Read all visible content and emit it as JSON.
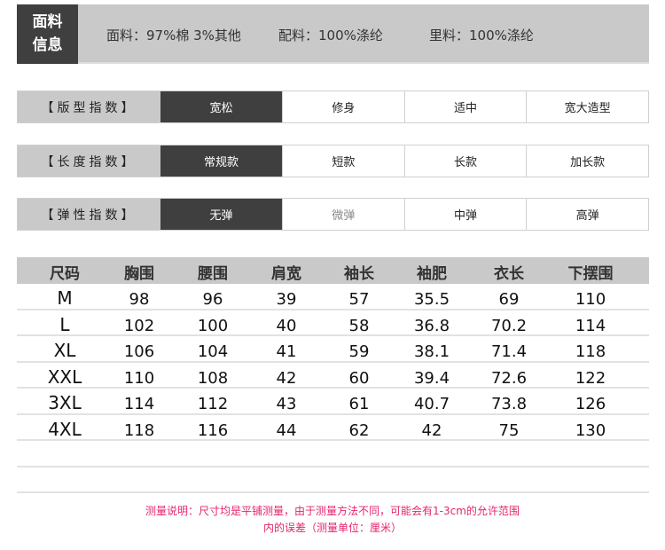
{
  "fabric": {
    "tag_line1": "面料",
    "tag_line2": "信息",
    "items": [
      "面料：97%棉  3%其他",
      "配料：100%涤纶",
      "里料：100%涤纶"
    ]
  },
  "indices": [
    {
      "label": "【版型指数】",
      "options": [
        "宽松",
        "修身",
        "适中",
        "宽大造型"
      ],
      "selected": 0
    },
    {
      "label": "【长度指数】",
      "options": [
        "常规款",
        "短款",
        "长款",
        "加长款"
      ],
      "selected": 0
    },
    {
      "label": "【弹性指数】",
      "options": [
        "无弹",
        "微弹",
        "中弹",
        "高弹"
      ],
      "selected": 0
    }
  ],
  "size_table": {
    "headers": [
      "尺码",
      "胸围",
      "腰围",
      "肩宽",
      "袖长",
      "袖肥",
      "衣长",
      "下摆围"
    ],
    "rows": [
      [
        "M",
        "98",
        "96",
        "39",
        "57",
        "35.5",
        "69",
        "110"
      ],
      [
        "L",
        "102",
        "100",
        "40",
        "58",
        "36.8",
        "70.2",
        "114"
      ],
      [
        "XL",
        "106",
        "104",
        "41",
        "59",
        "38.1",
        "71.4",
        "118"
      ],
      [
        "XXL",
        "110",
        "108",
        "42",
        "60",
        "39.4",
        "72.6",
        "122"
      ],
      [
        "3XL",
        "114",
        "112",
        "43",
        "61",
        "40.7",
        "73.8",
        "126"
      ],
      [
        "4XL",
        "118",
        "116",
        "44",
        "62",
        "42",
        "75",
        "130"
      ]
    ]
  },
  "note": {
    "line1": "测量说明：尺寸均是平铺测量，由于测量方法不同，可能会有1-3cm的允许范围",
    "line2": "内的误差（测量单位：厘米）"
  },
  "colors": {
    "dark": "#3f3f3f",
    "gray": "#c8c9c8",
    "note": "#e5246e"
  }
}
